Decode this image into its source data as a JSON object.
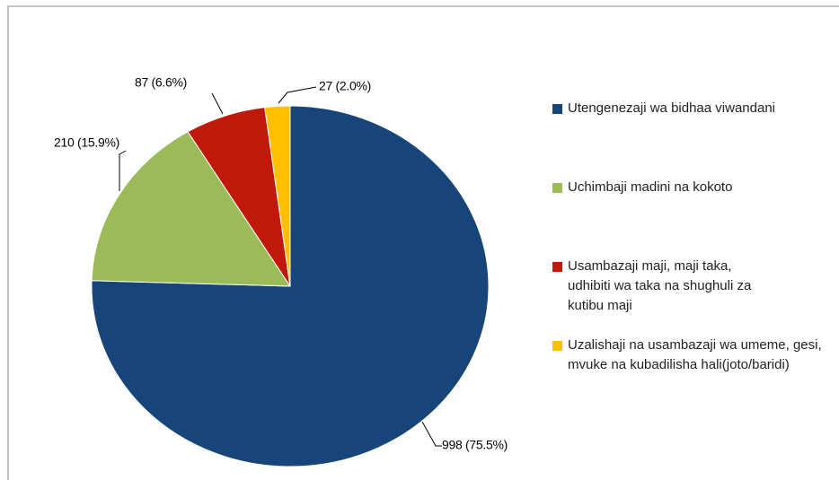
{
  "chart_data": {
    "type": "pie",
    "categories": [
      "Utengenezaji wa bidhaa viwandani",
      "Uchimbaji madini na kokoto",
      "Usambazaji maji, maji taka, udhibiti wa taka na shughuli za kutibu maji",
      "Uzalishaji na usambazaji wa umeme, gesi, mvuke na kubadilisha hali(joto/baridi)"
    ],
    "values": [
      998,
      210,
      87,
      27
    ],
    "value_labels": [
      "998 (75.5%)",
      "210 (15.9%)",
      "87 (6.6%)",
      "27 (2.0%)"
    ],
    "colors": [
      "#17457a",
      "#9bbb59",
      "#c0190b",
      "#ffc000"
    ],
    "legend": "right"
  }
}
